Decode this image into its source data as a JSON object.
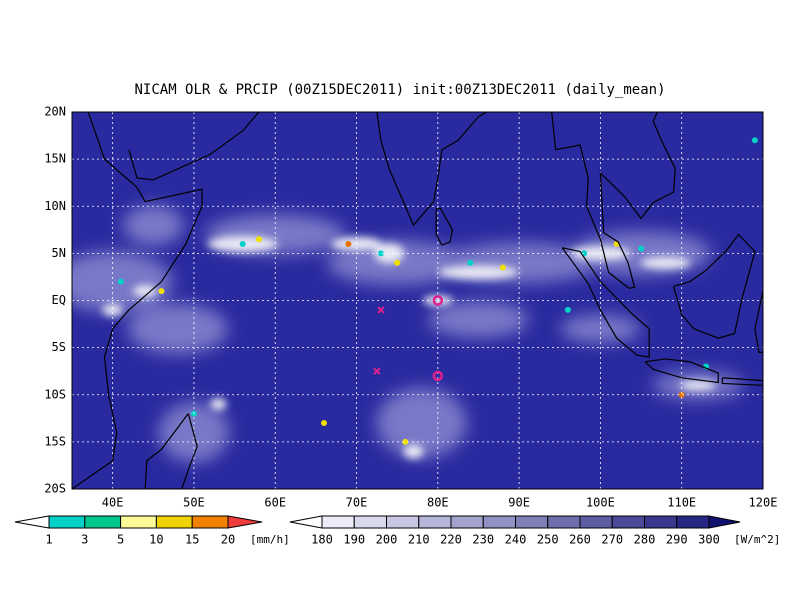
{
  "header": {
    "title": "NICAM OLR & PRCIP (00Z15DEC2011) init:00Z13DEC2011 (daily_mean)"
  },
  "map": {
    "lat_labels": [
      "20N",
      "15N",
      "10N",
      "5N",
      "EQ",
      "5S",
      "10S",
      "15S",
      "20S"
    ],
    "lon_labels": [
      "40E",
      "50E",
      "60E",
      "70E",
      "80E",
      "90E",
      "100E",
      "110E",
      "120E"
    ]
  },
  "legend_precip": {
    "labels": [
      "1",
      "3",
      "5",
      "10",
      "15",
      "20"
    ],
    "unit": "[mm/h]"
  },
  "legend_olr": {
    "labels": [
      "180",
      "190",
      "200",
      "210",
      "220",
      "230",
      "240",
      "250",
      "260",
      "270",
      "280",
      "290",
      "300"
    ],
    "unit": "[W/m^2]"
  }
}
